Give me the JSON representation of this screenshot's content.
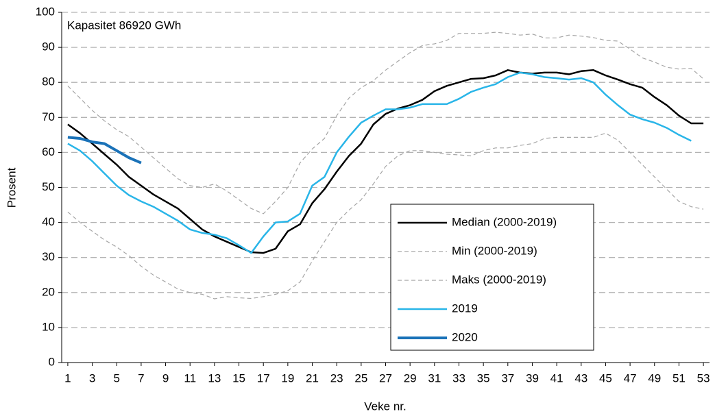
{
  "chart_data": {
    "type": "line",
    "annotation": "Kapasitet 86920  GWh",
    "xlabel": "Veke nr.",
    "ylabel": "Prosent",
    "x": [
      1,
      2,
      3,
      4,
      5,
      6,
      7,
      8,
      9,
      10,
      11,
      12,
      13,
      14,
      15,
      16,
      17,
      18,
      19,
      20,
      21,
      22,
      23,
      24,
      25,
      26,
      27,
      28,
      29,
      30,
      31,
      32,
      33,
      34,
      35,
      36,
      37,
      38,
      39,
      40,
      41,
      42,
      43,
      44,
      45,
      46,
      47,
      48,
      49,
      50,
      51,
      52,
      53
    ],
    "xlim": [
      0.5,
      53.5
    ],
    "xticks": [
      1,
      3,
      5,
      7,
      9,
      11,
      13,
      15,
      17,
      19,
      21,
      23,
      25,
      27,
      29,
      31,
      33,
      35,
      37,
      39,
      41,
      43,
      45,
      47,
      49,
      51,
      53
    ],
    "ylim": [
      0,
      100
    ],
    "yticks": [
      0,
      10,
      20,
      30,
      40,
      50,
      60,
      70,
      80,
      90,
      100
    ],
    "grid": true,
    "legend": "lower right",
    "series": [
      {
        "name": "Median (2000-2019)",
        "color": "#000000",
        "dashed": false,
        "width": 2.5,
        "values": [
          68,
          65.5,
          62.5,
          59.5,
          56.5,
          53,
          50.5,
          48,
          46,
          44,
          41,
          38,
          36,
          34.5,
          33,
          31.5,
          31.3,
          32.5,
          37.5,
          39.5,
          45.5,
          49.5,
          54.5,
          59,
          62.5,
          68,
          71,
          72.5,
          73.5,
          75,
          77.5,
          79,
          80,
          81,
          81.2,
          82,
          83.5,
          82.8,
          82.5,
          82.8,
          82.8,
          82.3,
          83.2,
          83.5,
          82,
          80.8,
          79.5,
          78.5,
          75.8,
          73.5,
          70.5,
          68.3,
          68.3
        ]
      },
      {
        "name": "Min (2000-2019)",
        "color": "#a6a6a6",
        "dashed": true,
        "width": 1.2,
        "values": [
          43,
          40,
          37.5,
          35,
          33,
          30.5,
          27.5,
          25,
          23,
          21,
          20,
          19.5,
          18.2,
          18.8,
          18.5,
          18.3,
          18.8,
          19.5,
          20.5,
          23,
          29,
          34.5,
          40,
          43.5,
          46.5,
          51,
          56,
          59,
          60.5,
          60.5,
          60,
          59.5,
          59.3,
          59,
          60.5,
          61.3,
          61.3,
          62,
          62.5,
          64,
          64.3,
          64.3,
          64.3,
          64.3,
          65.5,
          63.5,
          60,
          56.5,
          53,
          49.5,
          46,
          44.5,
          43.8
        ]
      },
      {
        "name": "Maks (2000-2019)",
        "color": "#a6a6a6",
        "dashed": true,
        "width": 1.2,
        "values": [
          79,
          75.5,
          72,
          69,
          66.5,
          64.5,
          61.5,
          58.5,
          55.5,
          52.5,
          50.5,
          50,
          51,
          49,
          46.5,
          44,
          42.5,
          46,
          50,
          57,
          61,
          64,
          70.5,
          75.5,
          78.5,
          80.5,
          83.5,
          86,
          88.5,
          90.5,
          91,
          92,
          94,
          94,
          94,
          94.3,
          94,
          93.5,
          93.8,
          92.7,
          92.7,
          93.5,
          93.2,
          92.8,
          92,
          91.8,
          89.5,
          87,
          85.8,
          84.3,
          83.8,
          84,
          81
        ]
      },
      {
        "name": "2019",
        "color": "#29b5e8",
        "dashed": false,
        "width": 2.5,
        "values": [
          62.5,
          60.5,
          57.5,
          54,
          50.5,
          47.8,
          46,
          44.5,
          42.5,
          40.5,
          38,
          37,
          36.5,
          35.5,
          33.5,
          31.3,
          36,
          40,
          40.3,
          42.5,
          50.5,
          53,
          60,
          64.5,
          68.5,
          70.5,
          72.3,
          72.3,
          72.8,
          73.8,
          73.8,
          73.8,
          75.3,
          77.3,
          78.5,
          79.5,
          81.5,
          82.8,
          82.3,
          81.5,
          81.2,
          80.8,
          81.2,
          80,
          76.5,
          73.5,
          70.8,
          69.5,
          68.5,
          67,
          65,
          63.3,
          null
        ]
      },
      {
        "name": "2020",
        "color": "#1a72b8",
        "dashed": false,
        "width": 4,
        "values": [
          64.3,
          64,
          63,
          62.5,
          60.5,
          58.5,
          57,
          null,
          null,
          null,
          null,
          null,
          null,
          null,
          null,
          null,
          null,
          null,
          null,
          null,
          null,
          null,
          null,
          null,
          null,
          null,
          null,
          null,
          null,
          null,
          null,
          null,
          null,
          null,
          null,
          null,
          null,
          null,
          null,
          null,
          null,
          null,
          null,
          null,
          null,
          null,
          null,
          null,
          null,
          null,
          null,
          null,
          null
        ]
      }
    ]
  }
}
